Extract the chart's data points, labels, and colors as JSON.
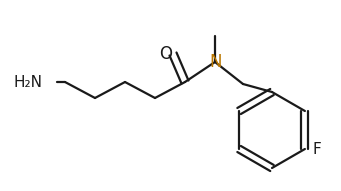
{
  "bg_color": "#ffffff",
  "bond_color": "#1a1a1a",
  "label_color_N": "#bb7700",
  "label_color_default": "#1a1a1a",
  "bond_lw": 1.6,
  "ring_r": 0.38,
  "font_size_atoms": 11,
  "N_label": "N",
  "O_label": "O",
  "F_label": "F",
  "H2N_label": "H₂N"
}
